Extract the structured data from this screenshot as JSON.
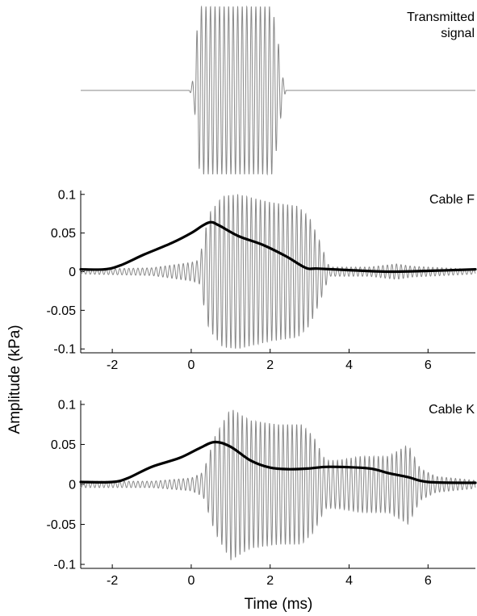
{
  "ylabel": "Amplitude (kPa)",
  "xlabel": "Time (ms)",
  "chart_data": [
    {
      "type": "line",
      "title": "Transmitted signal",
      "title_lines": [
        "Transmitted",
        "signal"
      ],
      "axes_visible": false,
      "xlim": [
        -2.8,
        7.2
      ],
      "ylim": [
        -1,
        1
      ],
      "series": [
        {
          "role": "waveform",
          "color": "#888888",
          "carrier_khz": 8.7,
          "envelope": {
            "x": [
              -2.8,
              -0.05,
              0.0,
              0.08,
              0.15,
              0.22,
              2.05,
              2.2,
              2.3,
              2.4,
              7.2
            ],
            "y": [
              0,
              0,
              0.05,
              0.2,
              0.75,
              1.0,
              1.0,
              0.6,
              0.2,
              0,
              0
            ]
          }
        }
      ]
    },
    {
      "type": "line",
      "title": "Cable F",
      "xlim": [
        -2.8,
        7.2
      ],
      "ylim": [
        -0.105,
        0.105
      ],
      "yticks": [
        "-0.1",
        "-0.05",
        "0",
        "0.05",
        "0.1"
      ],
      "xticks": [
        "-2",
        "0",
        "2",
        "4",
        "6"
      ],
      "series": [
        {
          "role": "waveform",
          "color": "#888888",
          "carrier_khz": 8.7,
          "envelope": {
            "x": [
              -2.8,
              -1.0,
              0.0,
              0.2,
              0.45,
              0.8,
              1.2,
              2.0,
              2.7,
              3.0,
              3.25,
              3.5,
              4.5,
              5.2,
              5.6,
              7.2
            ],
            "y": [
              0.003,
              0.005,
              0.012,
              0.015,
              0.075,
              0.098,
              0.1,
              0.09,
              0.085,
              0.07,
              0.04,
              0.006,
              0.006,
              0.01,
              0.007,
              0.003
            ]
          }
        },
        {
          "role": "smoothed",
          "color": "#000000",
          "x": [
            -2.8,
            -2.2,
            -1.8,
            -1.2,
            -0.5,
            0.0,
            0.3,
            0.5,
            0.7,
            1.2,
            1.8,
            2.4,
            2.9,
            3.2,
            4.0,
            5.0,
            6.0,
            7.2
          ],
          "y": [
            0.003,
            0.003,
            0.008,
            0.022,
            0.037,
            0.05,
            0.06,
            0.064,
            0.06,
            0.046,
            0.035,
            0.02,
            0.005,
            0.004,
            0.002,
            0.0,
            0.001,
            0.003
          ]
        }
      ]
    },
    {
      "type": "line",
      "title": "Cable K",
      "xlim": [
        -2.8,
        7.2
      ],
      "ylim": [
        -0.105,
        0.105
      ],
      "yticks": [
        "-0.1",
        "-0.05",
        "0",
        "0.05",
        "0.1"
      ],
      "xticks": [
        "-2",
        "0",
        "2",
        "4",
        "6"
      ],
      "series": [
        {
          "role": "waveform",
          "color": "#888888",
          "carrier_khz": 8.7,
          "envelope": {
            "x": [
              -2.8,
              -1.0,
              0.0,
              0.3,
              0.6,
              1.0,
              1.5,
              2.2,
              2.8,
              3.1,
              3.4,
              3.7,
              4.3,
              5.0,
              5.5,
              5.8,
              6.2,
              7.2
            ],
            "y": [
              0.004,
              0.004,
              0.008,
              0.015,
              0.06,
              0.095,
              0.08,
              0.075,
              0.075,
              0.06,
              0.03,
              0.03,
              0.035,
              0.035,
              0.05,
              0.02,
              0.01,
              0.005
            ]
          }
        },
        {
          "role": "smoothed",
          "color": "#000000",
          "x": [
            -2.8,
            -2.0,
            -1.6,
            -1.0,
            -0.3,
            0.2,
            0.6,
            1.0,
            1.5,
            2.0,
            2.5,
            3.0,
            3.5,
            4.5,
            5.0,
            5.5,
            6.0,
            7.2
          ],
          "y": [
            0.003,
            0.003,
            0.008,
            0.022,
            0.033,
            0.045,
            0.053,
            0.047,
            0.03,
            0.021,
            0.019,
            0.02,
            0.022,
            0.02,
            0.014,
            0.009,
            0.003,
            0.002
          ]
        }
      ]
    }
  ]
}
